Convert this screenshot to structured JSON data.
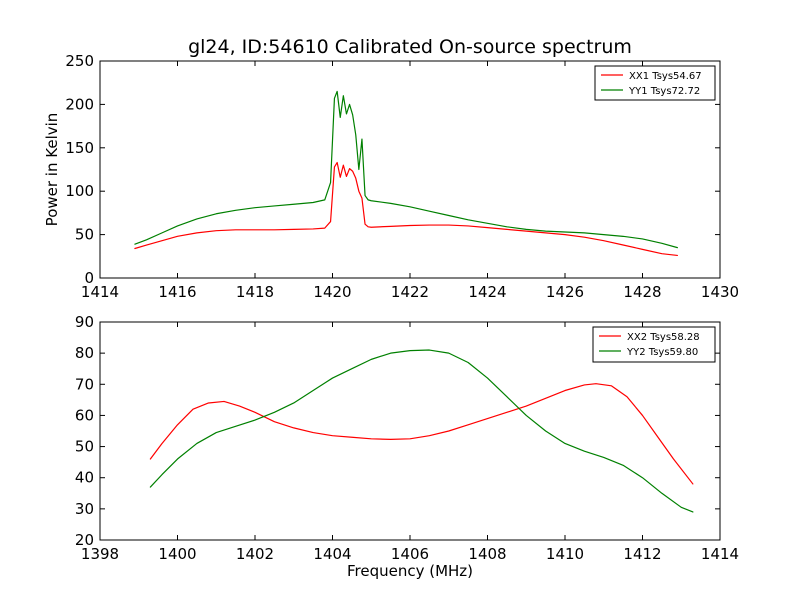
{
  "title": "gl24, ID:54610 Calibrated On-source spectrum",
  "colors": {
    "red": "#ff0000",
    "green": "#008000"
  },
  "chart_data": [
    {
      "type": "line",
      "title": "",
      "xlabel": "",
      "ylabel": "Power in Kelvin",
      "xlim": [
        1414,
        1430
      ],
      "ylim": [
        0,
        250
      ],
      "xticks": [
        "1414",
        "1416",
        "1418",
        "1420",
        "1422",
        "1424",
        "1426",
        "1428",
        "1430"
      ],
      "yticks": [
        "0",
        "50",
        "100",
        "150",
        "200",
        "250"
      ],
      "grid": false,
      "legend_position": "top-right",
      "series": [
        {
          "name": "XX1 Tsys54.67",
          "color": "#ff0000",
          "x": [
            1414.9,
            1415.2,
            1415.6,
            1416.0,
            1416.5,
            1417.0,
            1417.5,
            1418.0,
            1418.5,
            1419.0,
            1419.5,
            1419.8,
            1419.95,
            1420.05,
            1420.12,
            1420.2,
            1420.28,
            1420.36,
            1420.44,
            1420.52,
            1420.6,
            1420.68,
            1420.76,
            1420.84,
            1420.92,
            1421.0,
            1421.5,
            1422.0,
            1422.5,
            1423.0,
            1423.5,
            1424.0,
            1424.5,
            1425.0,
            1425.5,
            1426.0,
            1426.5,
            1427.0,
            1427.5,
            1428.0,
            1428.5,
            1428.9
          ],
          "y": [
            34,
            38,
            43,
            48,
            52,
            54.5,
            55.5,
            55.5,
            55.5,
            56,
            56.5,
            57.5,
            65,
            128,
            133,
            116,
            130,
            117,
            126,
            123,
            115,
            100,
            92,
            62,
            59,
            58.5,
            59.5,
            60.5,
            61,
            61,
            60,
            58,
            56,
            54,
            52,
            50,
            47,
            43,
            38,
            33,
            28,
            26
          ]
        },
        {
          "name": "YY1 Tsys72.72",
          "color": "#008000",
          "x": [
            1414.9,
            1415.2,
            1415.6,
            1416.0,
            1416.5,
            1417.0,
            1417.5,
            1418.0,
            1418.5,
            1419.0,
            1419.5,
            1419.8,
            1419.95,
            1420.05,
            1420.12,
            1420.2,
            1420.28,
            1420.36,
            1420.44,
            1420.52,
            1420.6,
            1420.68,
            1420.76,
            1420.84,
            1420.92,
            1421.0,
            1421.5,
            1422.0,
            1422.5,
            1423.0,
            1423.5,
            1424.0,
            1424.5,
            1425.0,
            1425.5,
            1426.0,
            1426.5,
            1427.0,
            1427.5,
            1428.0,
            1428.5,
            1428.9
          ],
          "y": [
            39,
            44,
            52,
            60,
            68,
            74,
            78,
            81,
            83,
            85,
            87,
            90,
            110,
            207,
            215,
            185,
            210,
            189,
            200,
            188,
            165,
            125,
            160,
            95,
            90,
            89,
            86,
            82,
            77,
            72,
            67,
            63,
            59,
            56,
            54,
            53,
            52,
            50,
            48,
            45,
            40,
            35
          ]
        }
      ]
    },
    {
      "type": "line",
      "title": "",
      "xlabel": "Frequency (MHz)",
      "ylabel": "",
      "xlim": [
        1398,
        1414
      ],
      "ylim": [
        20,
        90
      ],
      "xticks": [
        "1398",
        "1400",
        "1402",
        "1404",
        "1406",
        "1408",
        "1410",
        "1412",
        "1414"
      ],
      "yticks": [
        "20",
        "30",
        "40",
        "50",
        "60",
        "70",
        "80",
        "90"
      ],
      "grid": false,
      "legend_position": "top-right",
      "series": [
        {
          "name": "XX2 Tsys58.28",
          "color": "#ff0000",
          "x": [
            1399.3,
            1399.6,
            1400.0,
            1400.4,
            1400.8,
            1401.2,
            1401.6,
            1402.0,
            1402.5,
            1403.0,
            1403.5,
            1404.0,
            1404.5,
            1405.0,
            1405.5,
            1406.0,
            1406.5,
            1407.0,
            1407.5,
            1408.0,
            1408.5,
            1409.0,
            1409.5,
            1410.0,
            1410.5,
            1410.8,
            1411.2,
            1411.6,
            1412.0,
            1412.4,
            1412.8,
            1413.3
          ],
          "y": [
            46,
            51,
            57,
            62,
            64,
            64.5,
            63,
            61,
            58,
            56,
            54.5,
            53.5,
            53,
            52.5,
            52.3,
            52.5,
            53.5,
            55,
            57,
            59,
            61,
            63,
            65.5,
            68,
            69.8,
            70.2,
            69.5,
            66,
            60,
            53,
            46,
            38
          ]
        },
        {
          "name": "YY2 Tsys59.80",
          "color": "#008000",
          "x": [
            1399.3,
            1399.6,
            1400.0,
            1400.5,
            1401.0,
            1401.5,
            1402.0,
            1402.5,
            1403.0,
            1403.5,
            1404.0,
            1404.5,
            1405.0,
            1405.5,
            1406.0,
            1406.5,
            1407.0,
            1407.5,
            1408.0,
            1408.5,
            1409.0,
            1409.5,
            1410.0,
            1410.5,
            1411.0,
            1411.5,
            1412.0,
            1412.5,
            1413.0,
            1413.3
          ],
          "y": [
            37,
            41,
            46,
            51,
            54.5,
            56.5,
            58.5,
            61,
            64,
            68,
            72,
            75,
            78,
            80,
            80.8,
            81,
            80,
            77,
            72,
            66,
            60,
            55,
            51,
            48.5,
            46.5,
            44,
            40,
            35,
            30.5,
            29
          ]
        }
      ]
    }
  ]
}
